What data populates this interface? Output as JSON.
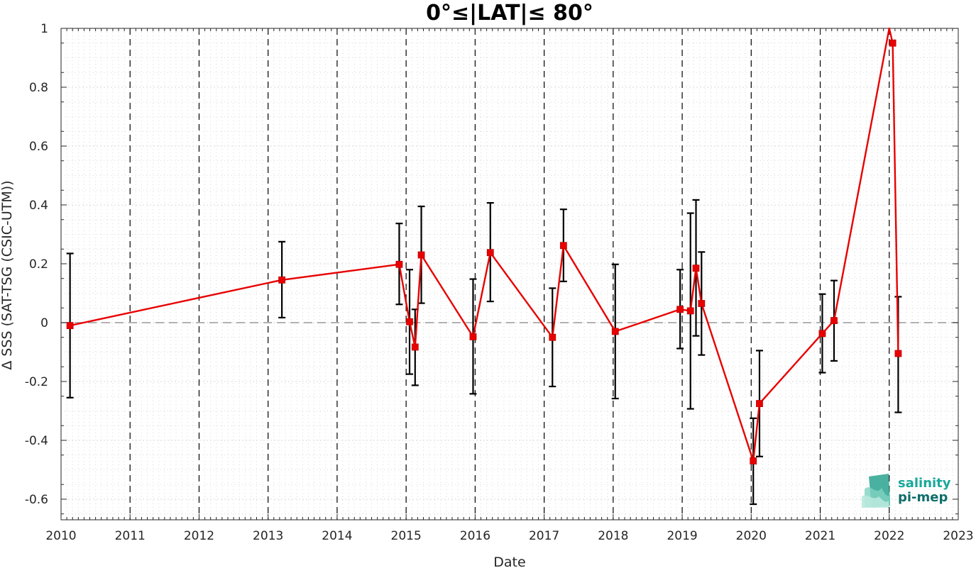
{
  "chart_data": {
    "type": "line",
    "title": "0°≤|LAT|≤ 80°",
    "xlabel": "Date",
    "ylabel": "Δ SSS (SAT-TSG (CSIC-UTM))",
    "xlim": [
      2010,
      2023
    ],
    "ylim": [
      -0.67,
      1.0
    ],
    "x_ticks": [
      2010,
      2011,
      2012,
      2013,
      2014,
      2015,
      2016,
      2017,
      2018,
      2019,
      2020,
      2021,
      2022,
      2023
    ],
    "x_tick_labels": [
      "2010",
      "2011",
      "2012",
      "2013",
      "2014",
      "2015",
      "2016",
      "2017",
      "2018",
      "2019",
      "2020",
      "2021",
      "2022",
      "2023"
    ],
    "y_ticks": [
      -0.6,
      -0.4,
      -0.2,
      0,
      0.2,
      0.4,
      0.6,
      0.8,
      1
    ],
    "y_tick_labels": [
      "-0.6",
      "-0.4",
      "-0.2",
      "0",
      "0.2",
      "0.4",
      "0.6",
      "0.8",
      "1"
    ],
    "grid": true,
    "year_dividers": [
      2011,
      2012,
      2013,
      2014,
      2015,
      2016,
      2017,
      2018,
      2019,
      2020,
      2021,
      2022
    ],
    "reference_line_y": 0,
    "colors": {
      "series": "#e80000",
      "errorbar": "#000000",
      "reference": "#999999",
      "divider": "#000000",
      "grid": "#d9d9d9"
    },
    "series": [
      {
        "x": [
          2010.13,
          2013.2,
          2014.9,
          2015.05,
          2015.13,
          2015.22,
          2015.97,
          2016.22,
          2017.12,
          2017.28,
          2018.03,
          2018.97,
          2019.12,
          2019.2,
          2019.28,
          2020.03,
          2020.12,
          2021.03,
          2021.2,
          2022.0,
          2022.05,
          2022.13
        ],
        "y": [
          -0.01,
          0.145,
          0.198,
          0.003,
          -0.083,
          0.23,
          -0.048,
          0.238,
          -0.05,
          0.262,
          -0.03,
          0.045,
          0.04,
          0.185,
          0.065,
          -0.47,
          -0.275,
          -0.037,
          0.007,
          1.05,
          0.95,
          -0.105
        ],
        "err_low": [
          -0.255,
          0.017,
          0.062,
          -0.175,
          -0.213,
          0.066,
          -0.242,
          0.072,
          -0.217,
          0.14,
          -0.258,
          -0.088,
          -0.293,
          -0.045,
          -0.11,
          -0.617,
          -0.455,
          -0.17,
          -0.13,
          null,
          null,
          -0.305
        ],
        "err_high": [
          0.235,
          0.275,
          0.337,
          0.18,
          0.045,
          0.395,
          0.148,
          0.407,
          0.117,
          0.385,
          0.198,
          0.18,
          0.372,
          0.417,
          0.24,
          -0.325,
          -0.095,
          0.097,
          0.143,
          null,
          null,
          0.088
        ]
      }
    ]
  },
  "logo": {
    "line1": "salinity",
    "line2": "pi-mep",
    "color1": "#1aa89a",
    "color2": "#0f6e6a"
  }
}
